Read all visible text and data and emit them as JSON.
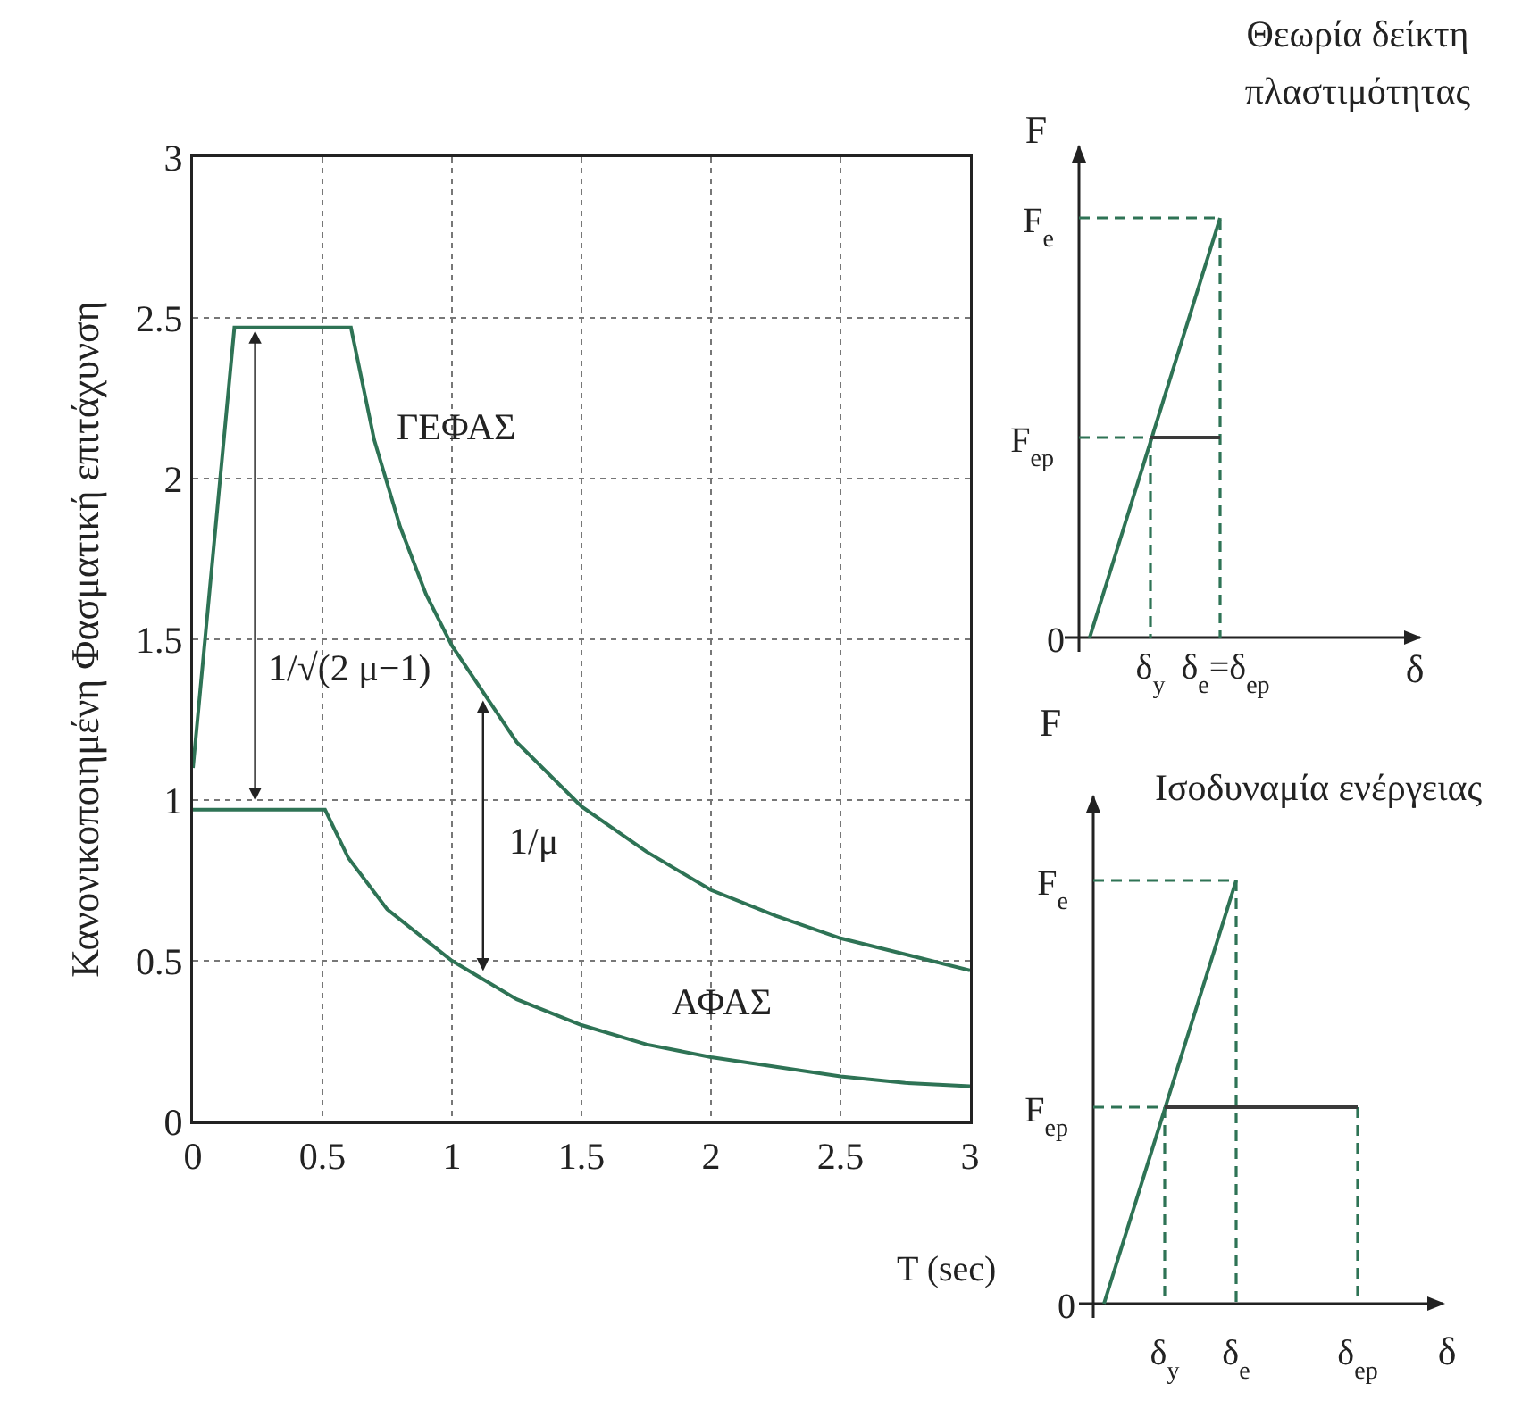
{
  "chart_data": [
    {
      "type": "line",
      "xlabel": "T (sec)",
      "ylabel": "Κανονικοποιημένη Φασματική επιτάχυνση",
      "xlim": [
        0,
        3
      ],
      "xticks": [
        0,
        0.5,
        1,
        1.5,
        2,
        2.5,
        3
      ],
      "ylim": [
        0,
        3
      ],
      "yticks": [
        0,
        0.5,
        1,
        1.5,
        2,
        2.5,
        3
      ],
      "grid": true,
      "line_style": "solid",
      "series": [
        {
          "color": "#2e7355",
          "x": [
            0,
            0.16,
            0.61,
            0.7,
            0.8,
            0.9,
            1.0,
            1.25,
            1.5,
            1.75,
            2.0,
            2.25,
            2.5,
            2.75,
            3.0
          ],
          "values": [
            1.1,
            2.47,
            2.47,
            2.12,
            1.85,
            1.64,
            1.48,
            1.18,
            0.98,
            0.84,
            0.72,
            0.64,
            0.57,
            0.52,
            0.47
          ]
        },
        {
          "color": "#2e7355",
          "x": [
            0,
            0.51,
            0.6,
            0.75,
            1.0,
            1.25,
            1.5,
            1.75,
            2.0,
            2.25,
            2.5,
            2.75,
            3.0
          ],
          "values": [
            0.97,
            0.97,
            0.82,
            0.66,
            0.5,
            0.38,
            0.3,
            0.24,
            0.2,
            0.17,
            0.14,
            0.12,
            0.11
          ]
        }
      ],
      "annotations": [
        "ΓΕΦΑΣ",
        "ΑΦΑΣ",
        "1/√(2 μ−1)",
        "1/μ"
      ]
    },
    {
      "type": "other",
      "title": "Θεωρία δείκτη πλαστιμότητας",
      "xlabel": "δ",
      "ylabel": "F",
      "annotations": [
        "F$_{e}$",
        "F$_{ep}$",
        "0",
        "δ$_{y}$",
        "δ$_{e}$=δ$_{ep}$"
      ]
    },
    {
      "type": "other",
      "title": "Ισοδυναμία ενέργειας",
      "xlabel": "δ",
      "ylabel": "F",
      "annotations": [
        "F$_{e}$",
        "F$_{ep}$",
        "0",
        "δ$_{y}$",
        "δ$_{e}$",
        "δ$_{ep}$"
      ]
    }
  ]
}
